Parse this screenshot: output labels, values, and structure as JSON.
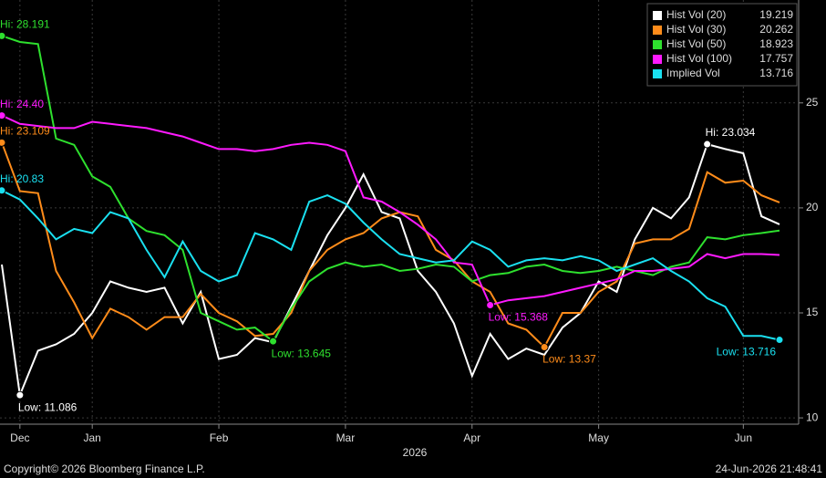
{
  "chart_data": {
    "type": "line",
    "categories": [
      null,
      "Dec",
      null,
      null,
      null,
      "Jan",
      null,
      null,
      null,
      null,
      null,
      null,
      "Feb",
      null,
      null,
      null,
      null,
      null,
      null,
      "Mar",
      null,
      null,
      null,
      null,
      null,
      null,
      "Apr",
      null,
      null,
      null,
      null,
      null,
      null,
      "May",
      null,
      null,
      null,
      null,
      null,
      null,
      null,
      "Jun",
      null,
      null
    ],
    "x_label": "2026",
    "ylim": [
      9.7,
      29.9
    ],
    "yticks": [
      10,
      15,
      20,
      25
    ],
    "grid": true,
    "legend": "top-right",
    "series": [
      {
        "name": "Hist Vol (20)",
        "color": "#ffffff",
        "hi_label": "Hi: 23.034",
        "low_label": "Low: 11.086",
        "values": [
          17.3,
          11.086,
          13.2,
          13.5,
          14.0,
          15.0,
          16.5,
          16.2,
          16.0,
          16.2,
          14.5,
          16.0,
          12.8,
          13.0,
          13.8,
          13.6,
          15.3,
          17.0,
          18.7,
          20.0,
          21.6,
          19.8,
          19.5,
          17.0,
          16.0,
          14.5,
          12.0,
          14.0,
          12.8,
          13.3,
          13.0,
          14.3,
          15.0,
          16.5,
          16.0,
          18.5,
          20.0,
          19.5,
          20.5,
          23.034,
          22.8,
          22.6,
          19.6,
          19.219
        ]
      },
      {
        "name": "Hist Vol (30)",
        "color": "#ff8c1a",
        "hi_label": "Hi: 23.109",
        "low_label": "Low: 13.37",
        "values": [
          23.109,
          20.8,
          20.7,
          17.0,
          15.5,
          13.8,
          15.2,
          14.8,
          14.2,
          14.8,
          14.8,
          15.9,
          15.0,
          14.6,
          13.9,
          14.0,
          15.0,
          17.0,
          18.0,
          18.5,
          18.8,
          19.5,
          19.8,
          19.6,
          18.0,
          17.5,
          16.5,
          16.0,
          14.5,
          14.2,
          13.37,
          15.0,
          15.0,
          16.0,
          16.5,
          18.3,
          18.5,
          18.5,
          19.0,
          21.7,
          21.2,
          21.3,
          20.6,
          20.262
        ]
      },
      {
        "name": "Hist Vol (50)",
        "color": "#2ee02e",
        "hi_label": "Hi: 28.191",
        "low_label": "Low: 13.645",
        "values": [
          28.191,
          27.9,
          27.8,
          23.3,
          23.0,
          21.5,
          21.0,
          19.5,
          18.9,
          18.7,
          18.0,
          15.0,
          14.6,
          14.2,
          14.3,
          13.645,
          15.2,
          16.5,
          17.1,
          17.4,
          17.2,
          17.3,
          17.0,
          17.1,
          17.3,
          17.2,
          16.5,
          16.8,
          16.9,
          17.2,
          17.3,
          17.0,
          16.9,
          17.0,
          17.2,
          17.0,
          16.8,
          17.2,
          17.4,
          18.6,
          18.5,
          18.7,
          18.8,
          18.923
        ]
      },
      {
        "name": "Hist Vol (100)",
        "color": "#ff1aff",
        "hi_label": "Hi: 24.40",
        "low_label": "Low: 15.368",
        "values": [
          24.4,
          24.0,
          23.9,
          23.8,
          23.8,
          24.1,
          24.0,
          23.9,
          23.8,
          23.6,
          23.4,
          23.1,
          22.8,
          22.8,
          22.7,
          22.8,
          23.0,
          23.1,
          23.0,
          22.7,
          20.5,
          20.3,
          19.8,
          19.2,
          18.5,
          17.4,
          17.3,
          15.368,
          15.6,
          15.7,
          15.8,
          16.0,
          16.2,
          16.4,
          16.6,
          17.0,
          17.0,
          17.1,
          17.2,
          17.8,
          17.6,
          17.8,
          17.8,
          17.757
        ]
      },
      {
        "name": "Implied Vol",
        "color": "#1ae0f0",
        "hi_label": "Hi: 20.83",
        "low_label": "Low: 13.716",
        "values": [
          20.83,
          20.4,
          19.5,
          18.5,
          19.0,
          18.8,
          19.8,
          19.5,
          18.0,
          16.7,
          18.4,
          17.0,
          16.5,
          16.8,
          18.8,
          18.5,
          18.0,
          20.3,
          20.6,
          20.2,
          19.3,
          18.5,
          17.8,
          17.6,
          17.4,
          17.5,
          18.4,
          18.0,
          17.2,
          17.5,
          17.6,
          17.5,
          17.7,
          17.5,
          17.0,
          17.3,
          17.6,
          17.0,
          16.5,
          15.7,
          15.3,
          13.9,
          13.9,
          13.716
        ]
      }
    ]
  },
  "footer": {
    "copyright": "Copyright© 2026 Bloomberg Finance L.P.",
    "timestamp": "24-Jun-2026 21:48:41"
  }
}
